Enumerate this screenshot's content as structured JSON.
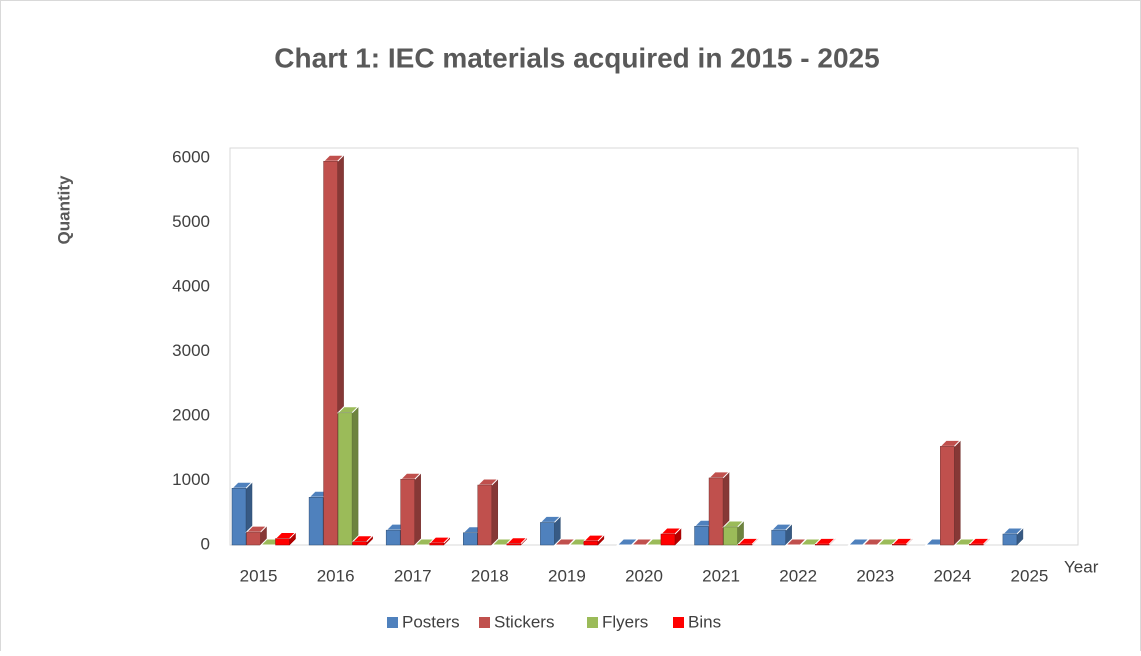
{
  "chart_data": {
    "type": "bar3d",
    "title": "Chart 1: IEC materials acquired in 2015 - 2025",
    "y_label": "Quantity",
    "x_label": "Year",
    "categories": [
      "2015",
      "2016",
      "2017",
      "2018",
      "2019",
      "2020",
      "2021",
      "2022",
      "2023",
      "2024",
      "2025"
    ],
    "series": [
      {
        "name": "Posters",
        "color": "#4f81bd",
        "values": [
          880,
          740,
          230,
          190,
          350,
          0,
          290,
          230,
          0,
          0,
          170
        ]
      },
      {
        "name": "Stickers",
        "color": "#c0504d",
        "values": [
          200,
          5950,
          1020,
          930,
          0,
          0,
          1040,
          0,
          0,
          1530,
          null
        ]
      },
      {
        "name": "Flyers",
        "color": "#9bbb59",
        "values": [
          0,
          2050,
          0,
          0,
          0,
          0,
          280,
          0,
          0,
          0,
          null
        ]
      },
      {
        "name": "Bins",
        "color": "#ff0000",
        "values": [
          100,
          50,
          30,
          20,
          60,
          170,
          10,
          10,
          10,
          10,
          null
        ]
      }
    ],
    "ylim": [
      0,
      6000
    ],
    "yticks": [
      0,
      1000,
      2000,
      3000,
      4000,
      5000,
      6000
    ],
    "grid": false,
    "legend": "bottom"
  }
}
